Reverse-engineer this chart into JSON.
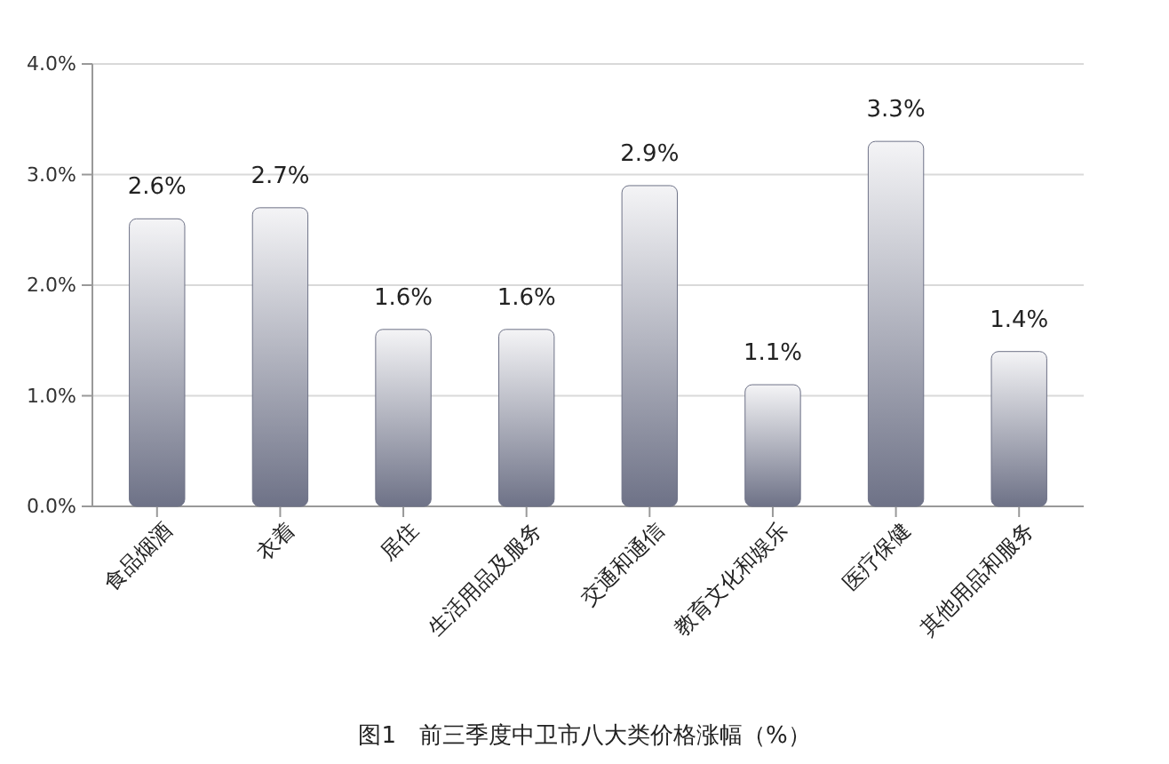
{
  "chart_data": {
    "type": "bar",
    "title": "图1　前三季度中卫市八大类价格涨幅（%）",
    "categories": [
      "食品烟酒",
      "衣着",
      "居住",
      "生活用品及服务",
      "交通和通信",
      "教育文化和娱乐",
      "医疗保健",
      "其他用品和服务"
    ],
    "values": [
      2.6,
      2.7,
      1.6,
      1.6,
      2.9,
      1.1,
      3.3,
      1.4
    ],
    "value_labels": [
      "2.6%",
      "2.7%",
      "1.6%",
      "1.6%",
      "2.9%",
      "1.1%",
      "3.3%",
      "1.4%"
    ],
    "color": "#6e7287",
    "ylim": [
      0,
      4
    ],
    "yticks": [
      {
        "value": 0,
        "label": "0.0%"
      },
      {
        "value": 1,
        "label": "1.0%"
      },
      {
        "value": 2,
        "label": "2.0%"
      },
      {
        "value": 3,
        "label": "3.0%"
      },
      {
        "value": 4,
        "label": "4.0%"
      }
    ],
    "grid": "y"
  }
}
